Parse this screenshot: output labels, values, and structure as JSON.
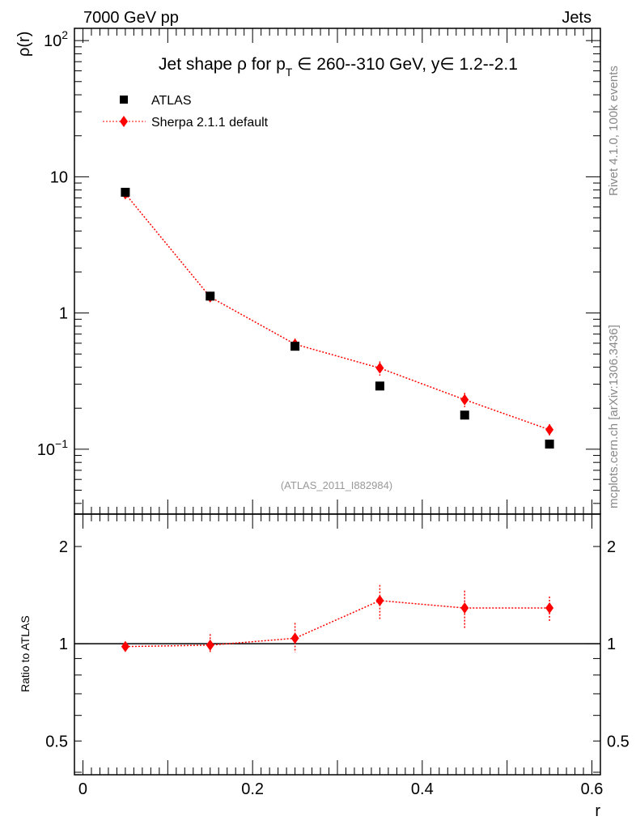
{
  "header": {
    "left": "7000 GeV pp",
    "right": "Jets"
  },
  "side_labels": {
    "top": "Rivet 4.1.0,  100k events",
    "bottom": "mcplots.cern.ch [arXiv:1306.3436]"
  },
  "watermark": "(ATLAS_2011_I882984)",
  "chart_data": [
    {
      "type": "scatter",
      "title": "Jet shape ρ for p_T ∈ 260--310 GeV, y∈ 1.2--2.1",
      "title_parts": {
        "a": "Jet shape ρ for p",
        "sub": "T",
        "b": " ∈ 260--310 GeV, y∈ 1.2--2.1"
      },
      "ylabel": "ρ(r)",
      "yscale": "log",
      "ylim": [
        0.0334,
        123
      ],
      "xlim": [
        -0.01,
        0.61
      ],
      "yticks": [
        {
          "v": 100,
          "label": "10",
          "exp": "2"
        },
        {
          "v": 10,
          "label": "10"
        },
        {
          "v": 1,
          "label": "1"
        },
        {
          "v": 0.1,
          "label": "10",
          "exp": "−1"
        }
      ],
      "legend": {
        "placement": "top-left",
        "entries": [
          "ATLAS",
          "Sherpa 2.1.1 default"
        ]
      },
      "x": [
        0.05,
        0.15,
        0.25,
        0.35,
        0.45,
        0.55
      ],
      "series": [
        {
          "name": "ATLAS",
          "color": "#000000",
          "marker": "square",
          "values": [
            7.7,
            1.33,
            0.57,
            0.291,
            0.178,
            0.109
          ]
        },
        {
          "name": "Sherpa 2.1.1 default",
          "color": "#ff0000",
          "marker": "diamond",
          "line": "dotted",
          "values": [
            7.5,
            1.31,
            0.59,
            0.394,
            0.231,
            0.139
          ],
          "rel_err": [
            0.03,
            0.07,
            0.1,
            0.12,
            0.12,
            0.1
          ]
        }
      ]
    },
    {
      "type": "scatter",
      "ylabel": "Ratio to ATLAS",
      "xlabel": "r",
      "yscale": "log",
      "ylim": [
        0.393,
        2.52
      ],
      "xlim": [
        -0.01,
        0.61
      ],
      "yticks": [
        {
          "v": 2,
          "label": "2"
        },
        {
          "v": 1,
          "label": "1"
        },
        {
          "v": 0.5,
          "label": "0.5"
        }
      ],
      "xticks": [
        {
          "v": 0,
          "label": "0"
        },
        {
          "v": 0.2,
          "label": "0.2"
        },
        {
          "v": 0.4,
          "label": "0.4"
        },
        {
          "v": 0.6,
          "label": "0.6"
        }
      ],
      "x": [
        0.05,
        0.15,
        0.25,
        0.35,
        0.45,
        0.55
      ],
      "series": [
        {
          "name": "Sherpa 2.1.1 default",
          "color": "#ff0000",
          "values": [
            0.98,
            0.99,
            1.04,
            1.36,
            1.29,
            1.29
          ],
          "err_up": [
            1.0,
            1.07,
            1.16,
            1.52,
            1.46,
            1.4
          ],
          "err_down": [
            0.96,
            0.94,
            0.94,
            1.18,
            1.11,
            1.17
          ]
        }
      ]
    }
  ]
}
